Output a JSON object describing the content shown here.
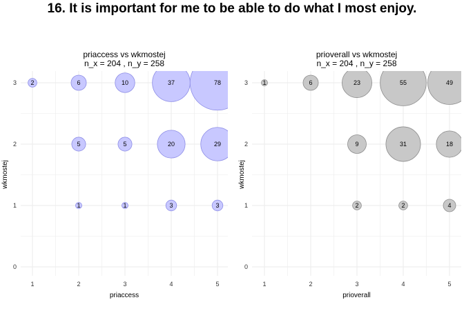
{
  "title": "16. It is important for me to be able to do what I most enjoy.",
  "chart_data": [
    {
      "type": "scatter",
      "title": "priaccess vs wkmostej",
      "subtitle": "n_x = 204 , n_y = 258",
      "xlabel": "priaccess",
      "ylabel": "wkmostej",
      "x_ticks": [
        "1",
        "2",
        "3",
        "4",
        "5"
      ],
      "y_ticks": [
        "0",
        "1",
        "2",
        "3"
      ],
      "xlim": [
        1,
        5
      ],
      "ylim": [
        0,
        3
      ],
      "grid": true,
      "fill_color": "#c8c8ff",
      "stroke_color": "#8c8ce6",
      "points": [
        {
          "x": 1,
          "y": 3,
          "n": 2
        },
        {
          "x": 2,
          "y": 3,
          "n": 6
        },
        {
          "x": 3,
          "y": 3,
          "n": 10
        },
        {
          "x": 4,
          "y": 3,
          "n": 37
        },
        {
          "x": 5,
          "y": 3,
          "n": 78
        },
        {
          "x": 2,
          "y": 2,
          "n": 5
        },
        {
          "x": 3,
          "y": 2,
          "n": 5
        },
        {
          "x": 4,
          "y": 2,
          "n": 20
        },
        {
          "x": 5,
          "y": 2,
          "n": 29
        },
        {
          "x": 2,
          "y": 1,
          "n": 1
        },
        {
          "x": 3,
          "y": 1,
          "n": 1
        },
        {
          "x": 4,
          "y": 1,
          "n": 3
        },
        {
          "x": 5,
          "y": 1,
          "n": 3
        }
      ]
    },
    {
      "type": "scatter",
      "title": "prioverall vs wkmostej",
      "subtitle": "n_x = 204 , n_y = 258",
      "xlabel": "prioverall",
      "ylabel": "wkmostej",
      "x_ticks": [
        "1",
        "2",
        "3",
        "4",
        "5"
      ],
      "y_ticks": [
        "0",
        "1",
        "2",
        "3"
      ],
      "xlim": [
        1,
        5
      ],
      "ylim": [
        0,
        3
      ],
      "grid": true,
      "fill_color": "#c8c8c8",
      "stroke_color": "#8c8c8c",
      "points": [
        {
          "x": 1,
          "y": 3,
          "n": 1
        },
        {
          "x": 2,
          "y": 3,
          "n": 6
        },
        {
          "x": 3,
          "y": 3,
          "n": 23
        },
        {
          "x": 4,
          "y": 3,
          "n": 55
        },
        {
          "x": 5,
          "y": 3,
          "n": 49
        },
        {
          "x": 3,
          "y": 2,
          "n": 9
        },
        {
          "x": 4,
          "y": 2,
          "n": 31
        },
        {
          "x": 5,
          "y": 2,
          "n": 18
        },
        {
          "x": 3,
          "y": 1,
          "n": 2
        },
        {
          "x": 4,
          "y": 1,
          "n": 2
        },
        {
          "x": 5,
          "y": 1,
          "n": 4
        }
      ]
    }
  ]
}
